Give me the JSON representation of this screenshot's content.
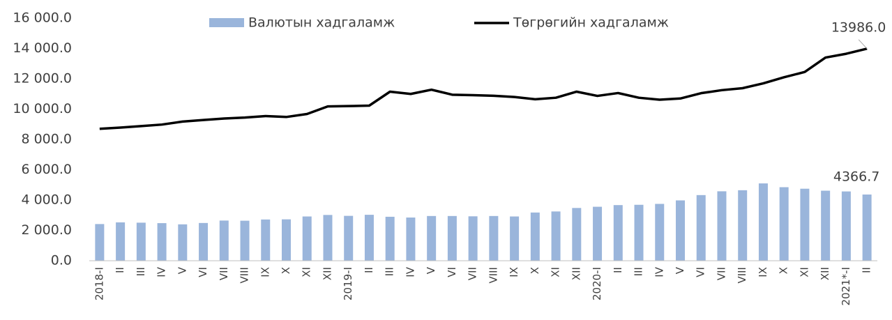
{
  "chart_data": {
    "type": "bar_line",
    "categories": [
      "2018-I",
      "II",
      "III",
      "IV",
      "V",
      "VI",
      "VII",
      "VIII",
      "IX",
      "X",
      "XI",
      "XII",
      "2019-I",
      "II",
      "III",
      "IV",
      "V",
      "VI",
      "VII",
      "VIII",
      "IX",
      "X",
      "XI",
      "XII",
      "2020-I",
      "II",
      "III",
      "IV",
      "V",
      "VI",
      "VII",
      "VIII",
      "IX",
      "X",
      "XI",
      "XII",
      "2021*-I",
      "II"
    ],
    "series": [
      {
        "name": "Валютын хадгаламж",
        "type": "bar",
        "color": "#9ab5db",
        "values": [
          2420,
          2530,
          2510,
          2480,
          2400,
          2490,
          2650,
          2640,
          2720,
          2730,
          2920,
          3020,
          2960,
          3030,
          2900,
          2850,
          2950,
          2950,
          2930,
          2950,
          2920,
          3180,
          3250,
          3480,
          3560,
          3670,
          3690,
          3750,
          3980,
          4330,
          4580,
          4650,
          5100,
          4850,
          4750,
          4620,
          4570,
          4366.7
        ],
        "value_labels": [
          null,
          null,
          null,
          null,
          null,
          null,
          null,
          null,
          null,
          null,
          null,
          null,
          null,
          null,
          null,
          null,
          null,
          null,
          null,
          null,
          null,
          null,
          null,
          null,
          null,
          null,
          null,
          null,
          null,
          null,
          null,
          null,
          null,
          null,
          null,
          null,
          null,
          "4366.7"
        ]
      },
      {
        "name": "Төгрөгийн хадгаламж",
        "type": "line",
        "color": "#000000",
        "values": [
          8700,
          8780,
          8880,
          8980,
          9180,
          9280,
          9380,
          9440,
          9540,
          9480,
          9680,
          10180,
          10200,
          10230,
          11150,
          11000,
          11280,
          10950,
          10920,
          10880,
          10800,
          10650,
          10750,
          11150,
          10870,
          11060,
          10750,
          10620,
          10700,
          11050,
          11250,
          11380,
          11700,
          12100,
          12450,
          13400,
          13650,
          13986
        ],
        "value_labels": [
          null,
          null,
          null,
          null,
          null,
          null,
          null,
          null,
          null,
          null,
          null,
          null,
          null,
          null,
          null,
          null,
          null,
          null,
          null,
          null,
          null,
          null,
          null,
          null,
          null,
          null,
          null,
          null,
          null,
          null,
          null,
          null,
          null,
          null,
          null,
          null,
          null,
          "13986.0"
        ]
      }
    ],
    "ylim": [
      0,
      16000
    ],
    "yticks": [
      {
        "value": 0,
        "label": "0.0"
      },
      {
        "value": 2000,
        "label": "2 000.0"
      },
      {
        "value": 4000,
        "label": "4 000.0"
      },
      {
        "value": 6000,
        "label": "6 000.0"
      },
      {
        "value": 8000,
        "label": "8 000.0"
      },
      {
        "value": 10000,
        "label": "10 000.0"
      },
      {
        "value": 12000,
        "label": "12 000.0"
      },
      {
        "value": 14000,
        "label": "14 000.0"
      },
      {
        "value": 16000,
        "label": "16 000.0"
      }
    ],
    "grid": false,
    "legend": "top"
  }
}
